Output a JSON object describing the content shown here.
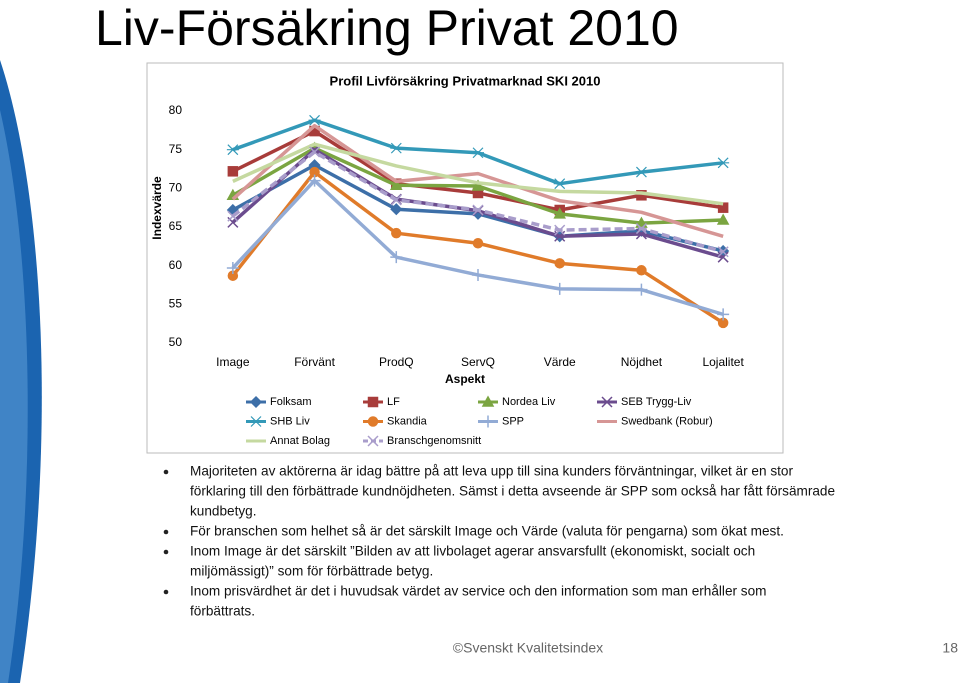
{
  "slide": {
    "title": "Liv-Försäkring Privat 2010",
    "bullets": [
      [
        "Majoriteten av aktörerna är idag bättre på att leva upp till sina kunders förväntningar, vilket är en stor",
        "förklaring till den förbättrade kundnöjdheten. Sämst i detta avseende är SPP som också har fått försämrade",
        "kundbetyg."
      ],
      [
        "För branschen som helhet så är det särskilt Image och Värde (valuta för pengarna) som ökat mest."
      ],
      [
        "Inom Image är det särskilt ”Bilden av att livbolaget agerar ansvarsfullt (ekonomiskt, socialt och",
        "miljömässigt)” som för förbättrade betyg."
      ],
      [
        "Inom prisvärdhet är det i huvudsak värdet av service och den information som man erhåller som",
        "förbättrats."
      ]
    ],
    "footer": "©Svenskt Kvalitetsindex",
    "page": "18"
  },
  "chart_data": {
    "type": "line",
    "title": "Profil Livförsäkring Privatmarknad SKI 2010",
    "x_label": "Aspekt",
    "y_label": "Indexvärde",
    "categories": [
      "Image",
      "Förvänt",
      "ProdQ",
      "ServQ",
      "Värde",
      "Nöjdhet",
      "Lojalitet"
    ],
    "ylim": [
      50,
      80
    ],
    "yticks": [
      50,
      55,
      60,
      65,
      70,
      75,
      80
    ],
    "grid": false,
    "legend": "bottom",
    "series": [
      {
        "name": "Folksam",
        "color": "#3d6fa8",
        "marker": "diamond",
        "values": [
          67.2,
          73.0,
          67.3,
          66.7,
          63.8,
          64.5,
          61.9
        ]
      },
      {
        "name": "LF",
        "color": "#a83c3a",
        "marker": "square",
        "values": [
          72.2,
          77.4,
          70.6,
          69.4,
          67.2,
          69.1,
          67.5
        ]
      },
      {
        "name": "Nordea Liv",
        "color": "#7ba541",
        "marker": "triangle",
        "values": [
          69.1,
          75.2,
          70.4,
          70.3,
          66.7,
          65.5,
          65.9
        ]
      },
      {
        "name": "SEB Trygg-Liv",
        "color": "#6b4c8e",
        "marker": "x",
        "values": [
          65.6,
          75.0,
          68.6,
          67.1,
          63.8,
          64.1,
          61.1
        ]
      },
      {
        "name": "SHB Liv",
        "color": "#3399b8",
        "marker": "star",
        "values": [
          75.0,
          78.8,
          75.2,
          74.6,
          70.6,
          72.1,
          73.3
        ]
      },
      {
        "name": "Skandia",
        "color": "#e07b2a",
        "marker": "circle",
        "values": [
          58.7,
          72.1,
          64.2,
          62.9,
          60.3,
          59.4,
          52.6
        ]
      },
      {
        "name": "SPP",
        "color": "#92abd5",
        "marker": "plus",
        "values": [
          59.7,
          71.0,
          61.1,
          58.8,
          57.0,
          56.9,
          53.7
        ]
      },
      {
        "name": "Swedbank (Robur)",
        "color": "#d69695",
        "marker": "none",
        "values": [
          68.6,
          78.1,
          70.9,
          71.9,
          68.4,
          66.9,
          63.8
        ]
      },
      {
        "name": "Annat Bolag",
        "color": "#c5d9a0",
        "marker": "none",
        "values": [
          70.9,
          75.7,
          72.9,
          70.7,
          69.6,
          69.4,
          68.0
        ]
      },
      {
        "name": "Branschgenomsnitt",
        "color": "#a99dcb",
        "marker": "x",
        "dashed": true,
        "values": [
          66.4,
          74.7,
          68.5,
          67.2,
          64.6,
          64.8,
          61.8
        ]
      }
    ]
  }
}
